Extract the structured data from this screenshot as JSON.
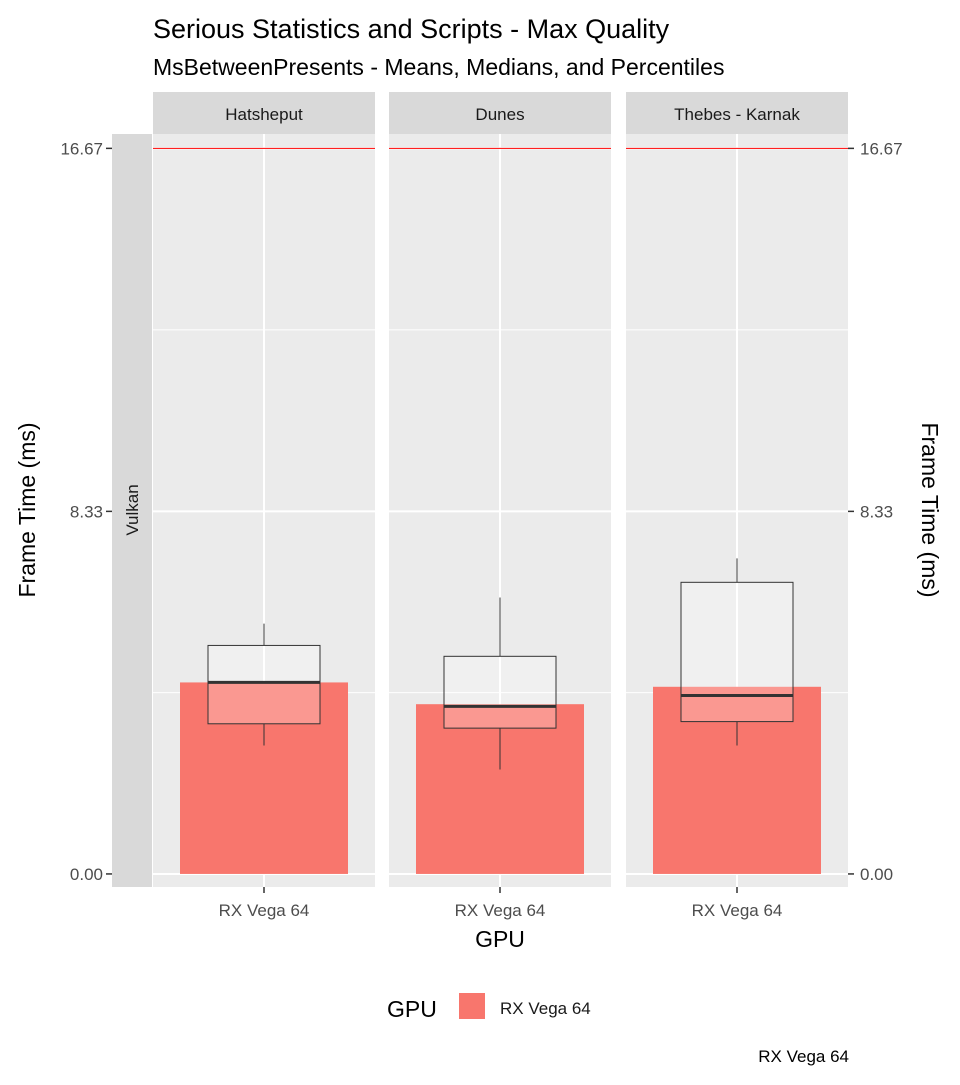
{
  "title": "Serious Statistics and Scripts - Max Quality",
  "subtitle": "MsBetweenPresents - Means, Medians, and Percentiles",
  "strip_label": "Vulkan",
  "caption": "RX Vega 64",
  "colors": {
    "bar": "#F8766D",
    "panel": "#EBEBEB",
    "strip": "#D9D9D9",
    "refline": "#FF0000",
    "grid": "#FFFFFF"
  },
  "chart_data": {
    "type": "bar",
    "xlabel": "GPU",
    "ylabel_left": "Frame Time (ms)",
    "ylabel_right": "Frame Time (ms)",
    "ylim": [
      -0.3,
      17.0
    ],
    "yticks": [
      0.0,
      8.33,
      16.67
    ],
    "ytick_labels": [
      "0.00",
      "8.33",
      "16.67"
    ],
    "reference_line": 16.67,
    "grid": true,
    "legend": {
      "title": "GPU",
      "position": "bottom",
      "entries": [
        "RX Vega 64"
      ]
    },
    "panels": [
      {
        "name": "Hatsheput",
        "category": "RX Vega 64",
        "mean": 4.4,
        "box": {
          "lower_whisker": 2.95,
          "q1": 3.45,
          "median": 4.4,
          "q3": 5.25,
          "upper_whisker": 5.75
        }
      },
      {
        "name": "Dunes",
        "category": "RX Vega 64",
        "mean": 3.9,
        "box": {
          "lower_whisker": 2.4,
          "q1": 3.35,
          "median": 3.85,
          "q3": 5.0,
          "upper_whisker": 6.35
        }
      },
      {
        "name": "Thebes - Karnak",
        "category": "RX Vega 64",
        "mean": 4.3,
        "box": {
          "lower_whisker": 2.95,
          "q1": 3.5,
          "median": 4.1,
          "q3": 6.7,
          "upper_whisker": 7.25
        }
      }
    ]
  }
}
